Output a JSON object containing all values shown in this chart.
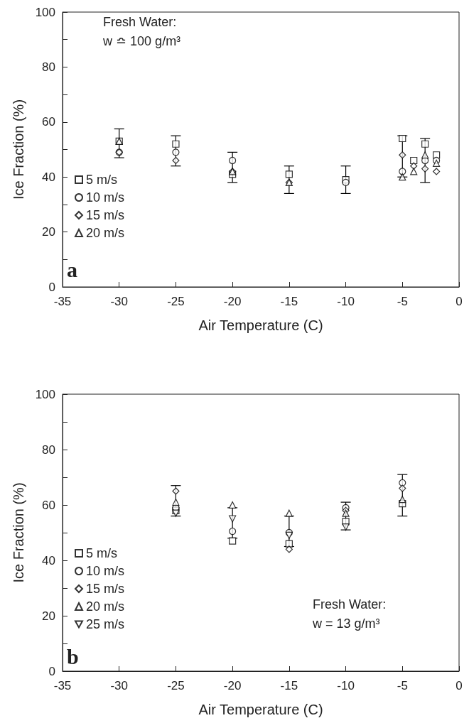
{
  "chart_data": [
    {
      "type": "scatter",
      "xlabel": "Air Temperature (C)",
      "ylabel": "Ice Fraction (%)",
      "annotations": [
        "Fresh Water:",
        "w ≏ 100 g/m³",
        "a"
      ],
      "x": [
        -30,
        -25,
        -20,
        -15,
        -10,
        -5,
        -4,
        -3,
        -2
      ],
      "series": [
        {
          "name": "5 m/s",
          "color": "#000000",
          "marker": "square",
          "values": [
            53,
            52,
            41,
            41,
            39,
            54,
            46,
            52,
            48
          ],
          "errors": [
            [
              47,
              57.5
            ],
            [
              44,
              55
            ],
            [
              38,
              49
            ],
            [
              34,
              44
            ],
            [
              34,
              44
            ],
            [
              40,
              55
            ],
            null,
            [
              38,
              54
            ],
            null
          ]
        },
        {
          "name": "10 m/s",
          "color": "#000000",
          "marker": "circle",
          "values": [
            49,
            49,
            46,
            null,
            38,
            42,
            null,
            46,
            46
          ]
        },
        {
          "name": "15 m/s",
          "color": "#000000",
          "marker": "diamond",
          "values": [
            49,
            46,
            42,
            38,
            null,
            48,
            44,
            43,
            42
          ]
        },
        {
          "name": "20 m/s",
          "color": "#000000",
          "marker": "triangle",
          "values": [
            53,
            null,
            42,
            38,
            null,
            40,
            42,
            48,
            45
          ]
        }
      ],
      "xlim": [
        -35,
        0
      ],
      "xticks": [
        -35,
        -30,
        -25,
        -20,
        -15,
        -10,
        -5,
        0
      ],
      "ylim": [
        0,
        100
      ],
      "yticks": [
        0,
        {
          "value": 10,
          "label": null
        },
        20,
        {
          "value": 30,
          "label": null
        },
        40,
        {
          "value": 50,
          "label": null
        },
        60,
        {
          "value": 70,
          "label": null
        },
        80,
        {
          "value": 90,
          "label": null
        },
        100
      ],
      "grid": false,
      "legend": "left"
    },
    {
      "type": "scatter",
      "xlabel": "Air Temperature (C)",
      "ylabel": "Ice Fraction (%)",
      "annotations": [
        "Fresh Water:",
        "w = 13 g/m³",
        "b"
      ],
      "x": [
        -25,
        -20,
        -15,
        -10,
        -5
      ],
      "series": [
        {
          "name": "5 m/s",
          "color": "#000000",
          "marker": "square",
          "values": [
            58,
            47,
            46,
            54,
            60.5
          ],
          "errors": [
            [
              56,
              67
            ],
            [
              48,
              59
            ],
            [
              45,
              56
            ],
            [
              51,
              61
            ],
            [
              56,
              71
            ]
          ]
        },
        {
          "name": "10 m/s",
          "color": "#000000",
          "marker": "circle",
          "values": [
            59,
            50.5,
            50,
            59,
            68
          ]
        },
        {
          "name": "15 m/s",
          "color": "#000000",
          "marker": "diamond",
          "values": [
            65,
            null,
            44,
            58,
            66
          ]
        },
        {
          "name": "20 m/s",
          "color": "#000000",
          "marker": "triangle",
          "values": [
            61,
            60,
            57,
            57,
            62
          ]
        },
        {
          "name": "25 m/s",
          "color": "#000000",
          "marker": "triangle-down",
          "values": [
            57,
            55,
            49,
            52,
            null
          ]
        }
      ],
      "xlim": [
        -35,
        0
      ],
      "xticks": [
        -35,
        -30,
        -25,
        -20,
        -15,
        -10,
        -5,
        0
      ],
      "ylim": [
        0,
        100
      ],
      "yticks": [
        0,
        {
          "value": 10,
          "label": null
        },
        20,
        {
          "value": 30,
          "label": null
        },
        40,
        {
          "value": 50,
          "label": null
        },
        60,
        {
          "value": 70,
          "label": null
        },
        80,
        {
          "value": 90,
          "label": null
        },
        100
      ],
      "grid": false,
      "legend": "bottom left"
    }
  ]
}
